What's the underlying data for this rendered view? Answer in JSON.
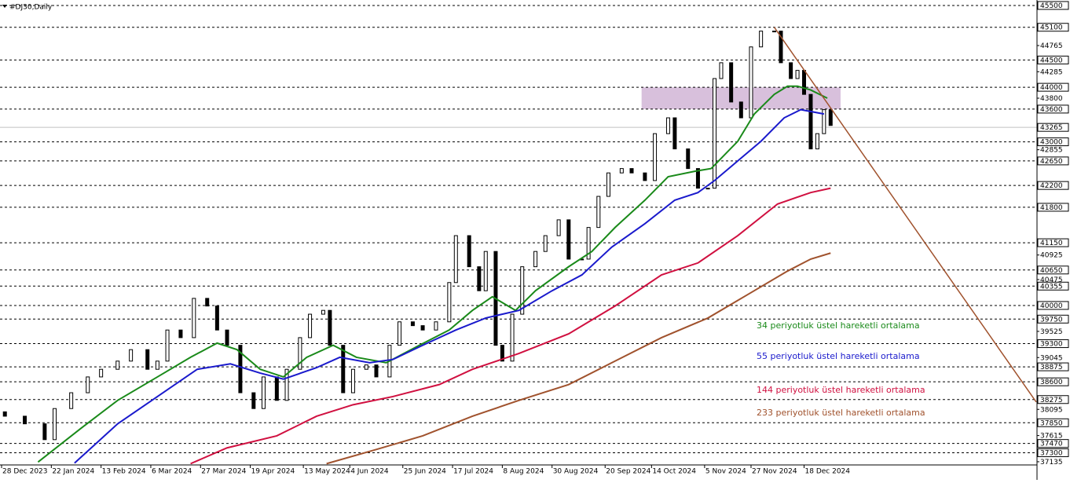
{
  "chart_data": {
    "type": "candlestick",
    "title": "#DJ30,Daily",
    "xlim": [
      0,
      312
    ],
    "ylim": [
      36990,
      45600
    ],
    "xticks": [
      {
        "value": 0,
        "label": "28 Dec 2023"
      },
      {
        "value": 15,
        "label": "22 Jan 2024"
      },
      {
        "value": 30,
        "label": "13 Feb 2024"
      },
      {
        "value": 45,
        "label": "6 Mar 2024"
      },
      {
        "value": 60,
        "label": "27 Mar 2024"
      },
      {
        "value": 75,
        "label": "19 Apr 2024"
      },
      {
        "value": 91,
        "label": "13 May 2024"
      },
      {
        "value": 105,
        "label": "4 Jun 2024"
      },
      {
        "value": 121,
        "label": "25 Jun 2024"
      },
      {
        "value": 136,
        "label": "17 Jul 2024"
      },
      {
        "value": 151,
        "label": "8 Aug 2024"
      },
      {
        "value": 166,
        "label": "30 Aug 2024"
      },
      {
        "value": 182,
        "label": "20 Sep 2024"
      },
      {
        "value": 196,
        "label": "14 Oct 2024"
      },
      {
        "value": 212,
        "label": "5 Nov 2024"
      },
      {
        "value": 226,
        "label": "27 Nov 2024"
      },
      {
        "value": 242,
        "label": "18 Dec 2024"
      }
    ],
    "yticks": [
      44765,
      44285,
      43800,
      42855,
      40925,
      40475,
      39525,
      39045,
      38095,
      37615,
      37135
    ],
    "levels": [
      45500,
      45100,
      44500,
      44000,
      43600,
      43000,
      42650,
      42200,
      41800,
      41150,
      40650,
      40355,
      40000,
      39750,
      39300,
      38875,
      38600,
      38275,
      37850,
      37470,
      37300
    ],
    "current_price": 43265,
    "x": [
      1,
      7,
      13,
      16,
      21,
      26,
      30,
      35,
      39,
      44,
      47,
      50,
      54,
      58,
      62,
      65,
      68,
      72,
      76,
      79,
      83,
      86,
      90,
      93,
      97,
      99,
      103,
      106,
      110,
      113,
      117,
      120,
      124,
      127,
      131,
      135,
      137,
      141,
      144,
      146,
      149,
      151,
      154,
      157,
      161,
      164,
      168,
      171,
      175,
      177,
      180,
      183,
      187,
      190,
      194,
      197,
      201,
      203,
      207,
      210,
      213,
      215,
      217,
      220,
      223,
      226,
      229,
      233,
      235,
      238,
      240,
      242,
      244,
      246,
      248,
      250
    ],
    "open": [
      38050,
      37970,
      37830,
      37540,
      38110,
      38400,
      38690,
      38830,
      38980,
      39190,
      38830,
      38980,
      39550,
      39410,
      40130,
      39990,
      39550,
      39270,
      38400,
      38110,
      38690,
      38260,
      38830,
      39410,
      39840,
      39910,
      39270,
      38400,
      38830,
      38910,
      38690,
      39270,
      39700,
      39630,
      39550,
      39700,
      40420,
      41280,
      40710,
      40270,
      40990,
      39270,
      38980,
      39840,
      40710,
      40990,
      41280,
      41570,
      40850,
      40850,
      41430,
      42000,
      42430,
      42510,
      42430,
      42290,
      43150,
      43440,
      42870,
      42510,
      42150,
      42150,
      44160,
      44450,
      43730,
      43440,
      44740,
      45030,
      45030,
      44450,
      44160,
      44310,
      43870,
      42870,
      43150,
      43590
    ],
    "close": [
      37970,
      37830,
      37540,
      38110,
      38400,
      38690,
      38830,
      38980,
      39190,
      38830,
      38980,
      39550,
      39410,
      40130,
      39990,
      39550,
      39270,
      38400,
      38110,
      38690,
      38260,
      38830,
      39410,
      39840,
      39910,
      39270,
      38400,
      38830,
      38910,
      38690,
      39270,
      39700,
      39630,
      39550,
      39700,
      40420,
      41280,
      40710,
      40270,
      40990,
      39270,
      38980,
      39840,
      40710,
      40990,
      41280,
      41570,
      40850,
      40850,
      41430,
      42000,
      42430,
      42510,
      42430,
      42290,
      43150,
      43440,
      42870,
      42510,
      42150,
      42150,
      44160,
      44450,
      43730,
      43440,
      44740,
      45030,
      45030,
      44450,
      44160,
      44310,
      43870,
      42870,
      43150,
      43590,
      43300
    ],
    "series": [
      {
        "name": "34 periyotluk üstel hareketli ortalama",
        "color": "#1a8a1a",
        "x": [
          11,
          24,
          35,
          47,
          57,
          65,
          71,
          78,
          85,
          92,
          100,
          107,
          116,
          126,
          135,
          142,
          148,
          155,
          161,
          171,
          178,
          185,
          194,
          201,
          209,
          214,
          222,
          227,
          233,
          237,
          240,
          244,
          249
        ],
        "values": [
          37130,
          37750,
          38260,
          38690,
          39050,
          39310,
          39190,
          38830,
          38690,
          39050,
          39270,
          39050,
          38950,
          39270,
          39550,
          39910,
          40160,
          39910,
          40270,
          40710,
          40990,
          41430,
          41930,
          42360,
          42460,
          42510,
          43010,
          43510,
          43870,
          44020,
          44020,
          43950,
          43800
        ]
      },
      {
        "name": "55 periyotluk üstel hareketli ortalama",
        "color": "#1a1acc",
        "x": [
          22,
          35,
          47,
          59,
          69,
          78,
          85,
          95,
          102,
          111,
          118,
          127,
          137,
          146,
          156,
          166,
          175,
          184,
          194,
          203,
          210,
          215,
          222,
          229,
          236,
          241,
          248
        ],
        "values": [
          37110,
          37830,
          38330,
          38830,
          38930,
          38760,
          38650,
          38860,
          39050,
          38950,
          39010,
          39270,
          39550,
          39770,
          39910,
          40270,
          40560,
          41070,
          41500,
          41930,
          42070,
          42290,
          42650,
          43010,
          43440,
          43590,
          43510
        ]
      },
      {
        "name": "144 periyotluk üstel hareketli ortalama",
        "color": "#d01040",
        "x": [
          57,
          68,
          83,
          95,
          106,
          118,
          132,
          142,
          156,
          171,
          185,
          199,
          210,
          222,
          234,
          244,
          250
        ],
        "values": [
          37100,
          37390,
          37610,
          37970,
          38180,
          38330,
          38550,
          38830,
          39120,
          39480,
          39990,
          40560,
          40780,
          41280,
          41860,
          42070,
          42150
        ]
      },
      {
        "name": "233 periyotluk üstel hareketli ortalama",
        "color": "#a0522d",
        "x": [
          98,
          113,
          127,
          142,
          156,
          171,
          185,
          199,
          213,
          225,
          237,
          244,
          250
        ],
        "values": [
          37100,
          37360,
          37610,
          37970,
          38260,
          38550,
          38980,
          39410,
          39770,
          40200,
          40630,
          40850,
          40960
        ]
      }
    ],
    "trendline": {
      "x": [
        233,
        312
      ],
      "values": [
        45100,
        38230
      ],
      "color": "#a0522d"
    },
    "zone": {
      "x": [
        193,
        253
      ],
      "values": [
        44000,
        43600
      ],
      "color": "#d8c0dc"
    }
  }
}
